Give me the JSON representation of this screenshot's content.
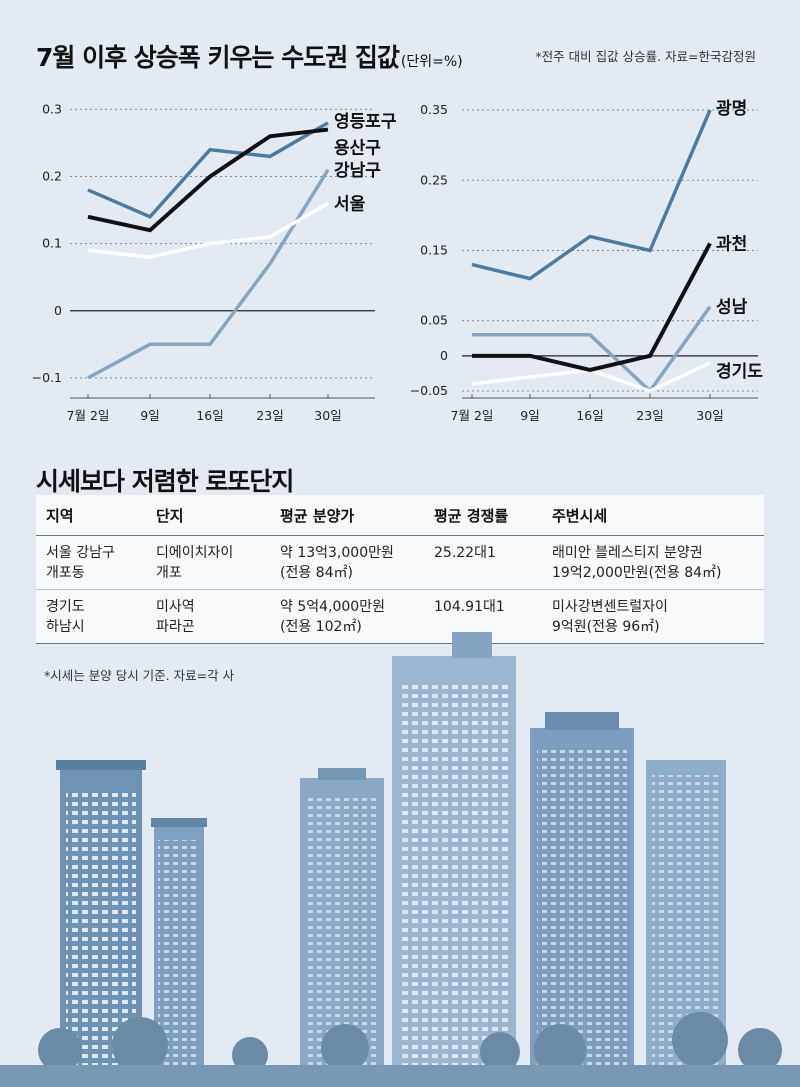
{
  "header": {
    "title": "7월 이후 상승폭 키우는 수도권 집값",
    "unit": "(단위=%)",
    "note": "*전주 대비 집값 상승률. 자료=한국감정원"
  },
  "chart_data": [
    {
      "type": "line",
      "categories": [
        "7월 2일",
        "9일",
        "16일",
        "23일",
        "30일"
      ],
      "ylim": [
        -0.13,
        0.32
      ],
      "yticks": [
        -0.1,
        0,
        0.1,
        0.2,
        0.3
      ],
      "ytick_labels": [
        "−0.1",
        "0",
        "0.1",
        "0.2",
        "0.3"
      ],
      "series": [
        {
          "name": "영등포구",
          "values": [
            0.18,
            0.14,
            0.24,
            0.23,
            0.28
          ],
          "color": "#4e7b9c"
        },
        {
          "name": "용산구",
          "values": [
            0.14,
            0.12,
            0.2,
            0.26,
            0.27
          ],
          "color": "#111111"
        },
        {
          "name": "강남구",
          "values": [
            -0.1,
            -0.05,
            -0.05,
            0.07,
            0.21
          ],
          "color": "#87a5bd"
        },
        {
          "name": "서울",
          "values": [
            0.09,
            0.08,
            0.1,
            0.11,
            0.16
          ],
          "color": "#ffffff"
        }
      ]
    },
    {
      "type": "line",
      "categories": [
        "7월 2일",
        "9일",
        "16일",
        "23일",
        "30일"
      ],
      "ylim": [
        -0.06,
        0.37
      ],
      "yticks": [
        -0.05,
        0,
        0.05,
        0.15,
        0.25,
        0.35
      ],
      "ytick_labels": [
        "−0.05",
        "0",
        "0.05",
        "0.15",
        "0.25",
        "0.35"
      ],
      "series": [
        {
          "name": "광명",
          "values": [
            0.13,
            0.11,
            0.17,
            0.15,
            0.35
          ],
          "color": "#4e7b9c"
        },
        {
          "name": "과천",
          "values": [
            0.0,
            0.0,
            -0.02,
            0.0,
            0.16
          ],
          "color": "#111111"
        },
        {
          "name": "성남",
          "values": [
            0.03,
            0.03,
            0.03,
            -0.05,
            0.07
          ],
          "color": "#87a5bd"
        },
        {
          "name": "경기도",
          "values": [
            -0.04,
            -0.03,
            -0.02,
            -0.05,
            -0.01
          ],
          "color": "#ffffff"
        }
      ]
    }
  ],
  "table": {
    "title": "시세보다 저렴한 로또단지",
    "headers": [
      "지역",
      "단지",
      "평균 분양가",
      "평균 경쟁률",
      "주변시세"
    ],
    "rows": [
      [
        "서울 강남구\n개포동",
        "디에이치자이\n개포",
        "약 13억3,000만원\n(전용 84㎡)",
        "25.22대1",
        "래미안 블레스티지 분양권\n19억2,000만원(전용 84㎡)"
      ],
      [
        "경기도\n하남시",
        "미사역\n파라곤",
        "약 5억4,000만원\n(전용 102㎡)",
        "104.91대1",
        "미사강변센트럴자이\n9억원(전용 96㎡)"
      ]
    ],
    "footnote": "*시세는 분양 당시 기준. 자료=각 사"
  }
}
